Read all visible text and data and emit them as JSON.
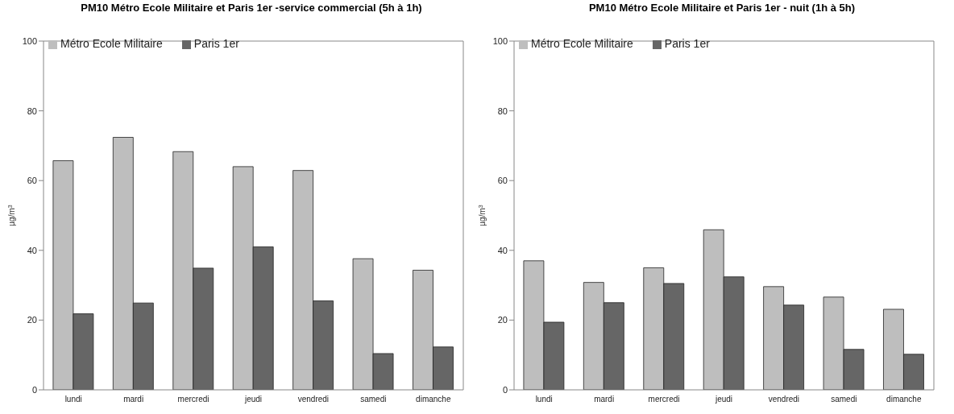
{
  "chart_data": [
    {
      "type": "bar",
      "title": "PM10 Métro Ecole Militaire et Paris 1er -service commercial (5h à 1h)",
      "ylabel": "µg/m$^{3}$",
      "categories": [
        "lundi",
        "mardi",
        "mercredi",
        "jeudi",
        "vendredi",
        "samedi",
        "dimanche"
      ],
      "series": [
        {
          "name": "Métro Ecole Militaire",
          "color": "#bebebe",
          "values": [
            65.7,
            72.4,
            68.3,
            64.0,
            62.9,
            37.6,
            34.3
          ]
        },
        {
          "name": "Paris 1er",
          "color": "#666666",
          "values": [
            21.8,
            24.9,
            34.9,
            41.0,
            25.5,
            10.4,
            12.3
          ]
        }
      ],
      "ylim": [
        0,
        100
      ],
      "yticks": [
        0,
        20,
        40,
        60,
        80,
        100
      ],
      "grid": false,
      "legend": "top left"
    },
    {
      "type": "bar",
      "title": "PM10 Métro Ecole Militaire et Paris 1er - nuit (1h à 5h)",
      "ylabel": "µg/m$^{3}$",
      "categories": [
        "lundi",
        "mardi",
        "mercredi",
        "jeudi",
        "vendredi",
        "samedi",
        "dimanche"
      ],
      "series": [
        {
          "name": "Métro Ecole Militaire",
          "color": "#bebebe",
          "values": [
            37.0,
            30.8,
            35.0,
            45.9,
            29.6,
            26.6,
            23.1
          ]
        },
        {
          "name": "Paris 1er",
          "color": "#666666",
          "values": [
            19.4,
            25.0,
            30.5,
            32.4,
            24.3,
            11.6,
            10.2
          ]
        }
      ],
      "ylim": [
        0,
        100
      ],
      "yticks": [
        0,
        20,
        40,
        60,
        80,
        100
      ],
      "grid": false,
      "legend": "top left"
    }
  ]
}
